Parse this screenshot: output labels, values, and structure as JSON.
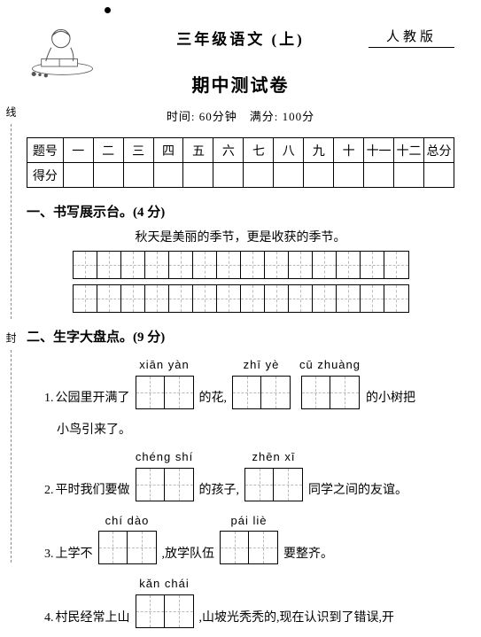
{
  "header": {
    "grade_title": "三年级语文  (上)",
    "version_label": "人教版",
    "exam_title": "期中测试卷",
    "time_info": "时间: 60分钟　满分: 100分"
  },
  "score_table": {
    "row_label_1": "题号",
    "row_label_2": "得分",
    "cols": [
      "一",
      "二",
      "三",
      "四",
      "五",
      "六",
      "七",
      "八",
      "九",
      "十",
      "十一",
      "十二",
      "总分"
    ]
  },
  "section1": {
    "title": "一、书写展示台。(4 分)",
    "sentence": "秋天是美丽的季节，更是收获的季节。",
    "grid_rows": 2,
    "grid_cols": 14
  },
  "section2": {
    "title": "二、生字大盘点。(9 分)",
    "q1": {
      "num": "1.",
      "t1": "公园里开满了",
      "p1": "xiān  yàn",
      "t2": "的花,",
      "p2": "zhī   yè",
      "p3": "cū  zhuàng",
      "t3": "的小树把",
      "cont": "小鸟引来了。"
    },
    "q2": {
      "num": "2.",
      "t1": "平时我们要做",
      "p1": "chéng  shí",
      "t2": "的孩子,",
      "p2": "zhēn   xī",
      "t3": "同学之间的友谊。"
    },
    "q3": {
      "num": "3.",
      "t1": "上学不",
      "p1": "chí   dào",
      "t2": ",放学队伍",
      "p2": "pái   liè",
      "t3": "要整齐。"
    },
    "q4": {
      "num": "4.",
      "t1": "村民经常上山",
      "p1": "kǎn  chái",
      "t2": ",山坡光秃秃的,现在认识到了错误,开"
    }
  },
  "side": {
    "label1": "线",
    "label2": "封"
  }
}
